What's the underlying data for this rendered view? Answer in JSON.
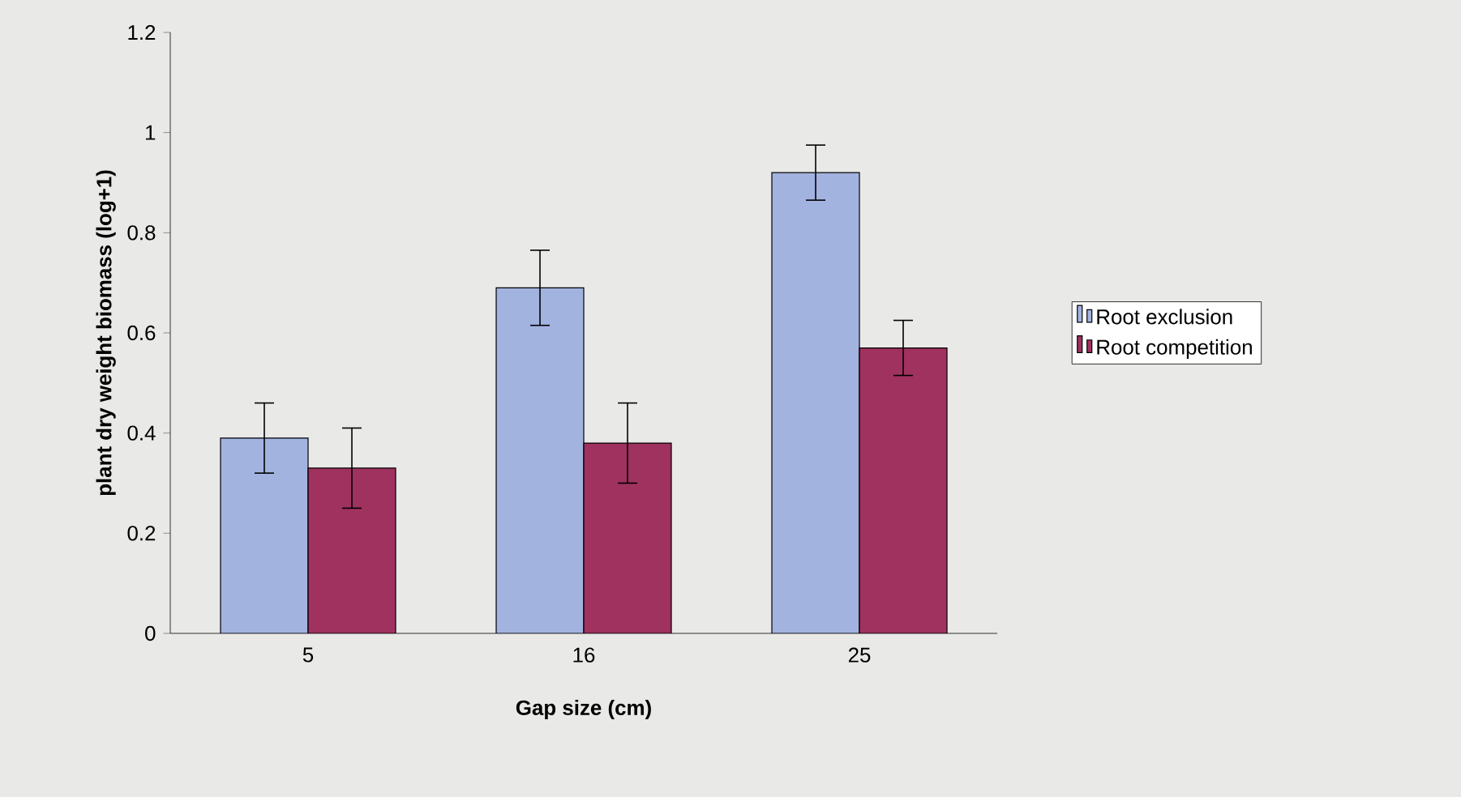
{
  "chart_data": {
    "type": "bar",
    "xlabel": "Gap size (cm)",
    "ylabel": "plant dry weight biomass (log+1)",
    "categories": [
      "5",
      "16",
      "25"
    ],
    "series": [
      {
        "name": "Root exclusion",
        "color": "#a3b3e0",
        "values": [
          0.39,
          0.69,
          0.92
        ],
        "errors": [
          0.07,
          0.075,
          0.055
        ]
      },
      {
        "name": "Root competition",
        "color": "#a0325f",
        "values": [
          0.33,
          0.38,
          0.57
        ],
        "errors": [
          0.08,
          0.08,
          0.055
        ]
      }
    ],
    "ylim": [
      0,
      1.2
    ],
    "yticks": [
      0,
      0.2,
      0.4,
      0.6,
      0.8,
      1,
      1.2
    ],
    "grid": false,
    "legend": "right"
  }
}
